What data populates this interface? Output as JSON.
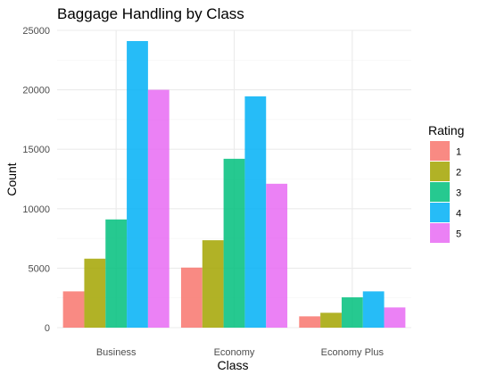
{
  "chart_data": {
    "type": "bar",
    "title": "Baggage Handling by Class",
    "xlabel": "Class",
    "ylabel": "Count",
    "categories": [
      "Business",
      "Economy",
      "Economy Plus"
    ],
    "ylim": [
      0,
      25000
    ],
    "yticks": [
      0,
      5000,
      10000,
      15000,
      20000,
      25000
    ],
    "grid": true,
    "legend": {
      "title": "Rating",
      "position": "right"
    },
    "series": [
      {
        "name": "1",
        "color": "#F8766D",
        "values": [
          3050,
          5050,
          950
        ]
      },
      {
        "name": "2",
        "color": "#A3A500",
        "values": [
          5800,
          7350,
          1250
        ]
      },
      {
        "name": "3",
        "color": "#00BF7D",
        "values": [
          9100,
          14200,
          2550
        ]
      },
      {
        "name": "4",
        "color": "#00B0F6",
        "values": [
          24100,
          19450,
          3050
        ]
      },
      {
        "name": "5",
        "color": "#E76BF3",
        "values": [
          20000,
          12100,
          1700
        ]
      }
    ]
  }
}
